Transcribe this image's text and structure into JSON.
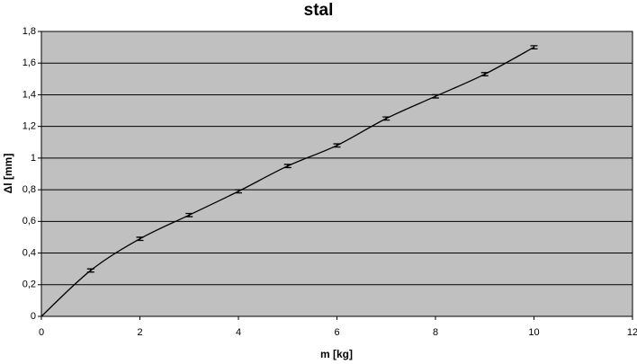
{
  "chart_data": {
    "type": "line",
    "title": "stal",
    "x_label": "m [kg]",
    "y_label": "Δl [mm]",
    "x": [
      0,
      1,
      2,
      3,
      4,
      5,
      6,
      7,
      8,
      9,
      10
    ],
    "series": [
      {
        "name": "stal",
        "color": "#000000",
        "values": [
          0,
          0.29,
          0.49,
          0.64,
          0.79,
          0.95,
          1.08,
          1.25,
          1.39,
          1.53,
          1.7
        ],
        "errors": [
          null,
          0.01,
          0.01,
          0.01,
          0.01,
          0.01,
          0.01,
          0.01,
          0.01,
          0.01,
          0.01
        ]
      }
    ],
    "xlim": [
      0,
      12
    ],
    "xticks": [
      0,
      2,
      4,
      6,
      8,
      10,
      12
    ],
    "ylim": [
      0,
      1.8
    ],
    "yticks": [
      0,
      {
        "value": 0.2,
        "label": "0,2"
      },
      {
        "value": 0.4,
        "label": "0,4"
      },
      {
        "value": 0.6,
        "label": "0,6"
      },
      {
        "value": 0.8,
        "label": "0,8"
      },
      1,
      {
        "value": 1.2,
        "label": "1,2"
      },
      {
        "value": 1.4,
        "label": "1,4"
      },
      {
        "value": 1.6,
        "label": "1,6"
      },
      {
        "value": 1.8,
        "label": "1,8"
      }
    ],
    "grid": true,
    "plot_background": "#c0c0c0"
  }
}
